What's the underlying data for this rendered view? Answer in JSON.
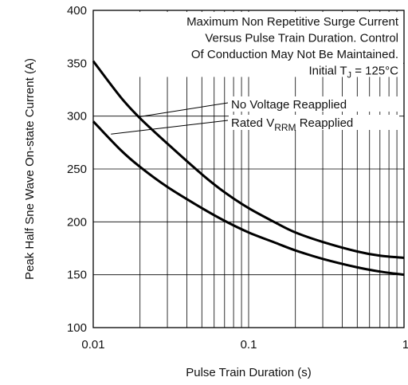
{
  "chart_data": {
    "type": "line",
    "x_scale": "log",
    "y_scale": "linear",
    "xlim": [
      0.01,
      1
    ],
    "ylim": [
      100,
      400
    ],
    "xlabel": "Pulse Train Duration (s)",
    "ylabel": "Peak Half Sne Wave On-state Current (A)",
    "x_ticks": [
      {
        "value": 0.01,
        "label": "0.01"
      },
      {
        "value": 0.1,
        "label": "0.1"
      },
      {
        "value": 1,
        "label": "1"
      }
    ],
    "y_ticks": [
      {
        "value": 100,
        "label": "100"
      },
      {
        "value": 150,
        "label": "150"
      },
      {
        "value": 200,
        "label": "200"
      },
      {
        "value": 250,
        "label": "250"
      },
      {
        "value": 300,
        "label": "300"
      },
      {
        "value": 350,
        "label": "350"
      },
      {
        "value": 400,
        "label": "400"
      }
    ],
    "grid": true,
    "annotation_lines": [
      "Maximum Non Repetitive Surge Current",
      "Versus Pulse Train Duration. Control",
      "Of Conduction May Not Be Maintained."
    ],
    "condition": {
      "text": "Initial T",
      "subscript": "J",
      "suffix": " = 125°C"
    },
    "series": [
      {
        "name": "No Voltage Reapplied",
        "x": [
          0.01,
          0.015,
          0.02,
          0.03,
          0.05,
          0.07,
          0.1,
          0.15,
          0.2,
          0.3,
          0.5,
          0.7,
          1
        ],
        "y": [
          352,
          318,
          298,
          274,
          245,
          228,
          213,
          199,
          190,
          181,
          172,
          168,
          166
        ]
      },
      {
        "name_parts": {
          "text": "Rated V",
          "subscript": "RRM",
          "suffix": " Reapplied"
        },
        "x": [
          0.01,
          0.015,
          0.02,
          0.03,
          0.05,
          0.07,
          0.1,
          0.15,
          0.2,
          0.3,
          0.5,
          0.7,
          1
        ],
        "y": [
          295,
          268,
          252,
          233,
          213,
          201,
          190,
          180,
          173,
          165,
          157,
          153,
          150
        ]
      }
    ]
  }
}
